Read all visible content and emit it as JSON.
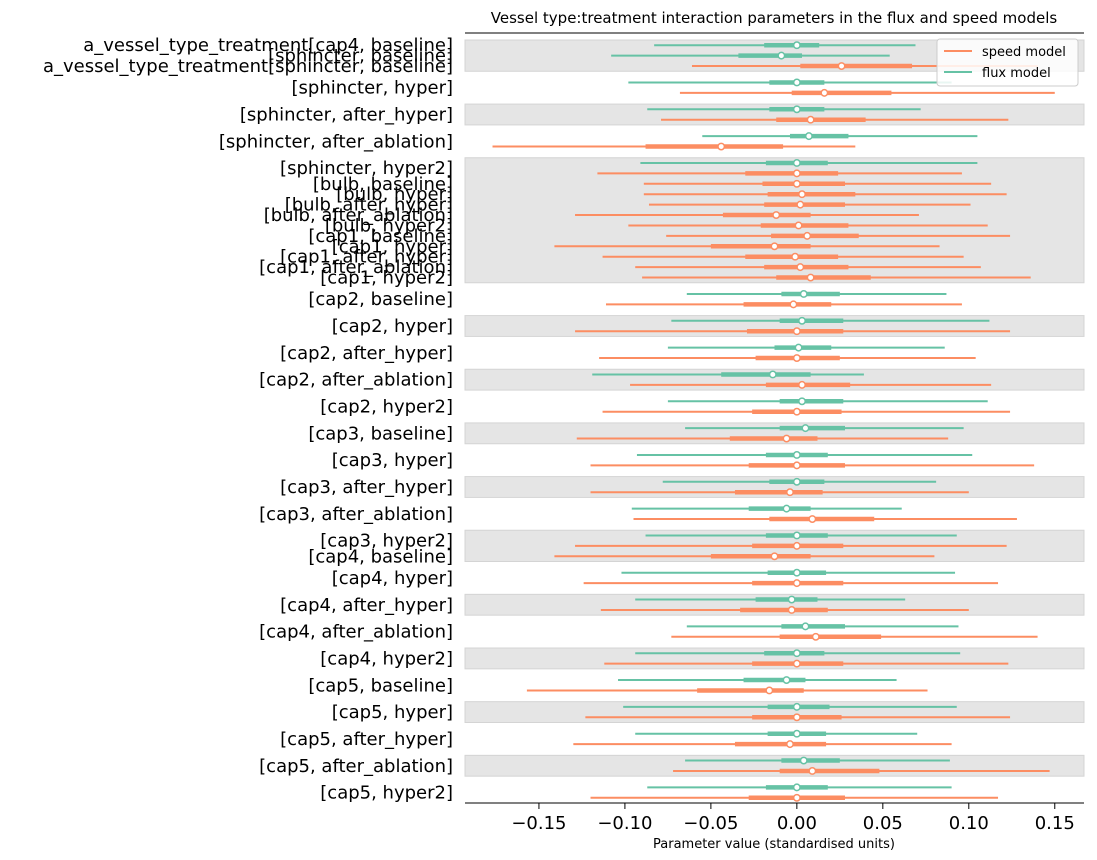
{
  "chart_data": {
    "type": "forest",
    "title": "Vessel type:treatment interaction parameters in the flux and speed models",
    "xlabel": "Parameter value (standardised units)",
    "ylabel": "",
    "xlim": [
      -0.193,
      0.167
    ],
    "xticks": [
      -0.15,
      -0.1,
      -0.05,
      0.0,
      0.05,
      0.1,
      0.15
    ],
    "xtick_labels": [
      "−0.15",
      "−0.10",
      "−0.05",
      "0.00",
      "0.05",
      "0.10",
      "0.15"
    ],
    "legend": {
      "placement": "top-right",
      "entries": [
        {
          "label": "speed model",
          "color": "#fc8d62"
        },
        {
          "label": "flux model",
          "color": "#66c2a5"
        }
      ]
    },
    "colors": {
      "speed": "#fc8d62",
      "flux": "#66c2a5",
      "band": "#e5e5e5"
    },
    "note_units": "each estimate: [hdi_low, iqr_low, median, iqr_high, hdi_high]",
    "groups": [
      {
        "shaded": true,
        "rows": [
          {
            "label": "a_vessel_type_treatment[cap4, baseline]",
            "flux": [
              -0.083,
              -0.019,
              0.0,
              0.013,
              0.069
            ]
          },
          {
            "label": "[sphincter, baseline]",
            "flux": [
              -0.108,
              -0.034,
              -0.009,
              0.003,
              0.054
            ]
          },
          {
            "label": "a_vessel_type_treatment[sphincter, baseline]",
            "speed": [
              -0.061,
              0.002,
              0.026,
              0.067,
              0.14
            ]
          }
        ]
      },
      {
        "shaded": false,
        "rows": [
          {
            "label": "[sphincter, hyper]",
            "flux": [
              -0.098,
              -0.016,
              0.0,
              0.016,
              0.09
            ],
            "speed": [
              -0.068,
              -0.003,
              0.016,
              0.055,
              0.15
            ]
          }
        ]
      },
      {
        "shaded": true,
        "rows": [
          {
            "label": "[sphincter, after_hyper]",
            "flux": [
              -0.087,
              -0.016,
              0.0,
              0.016,
              0.072
            ],
            "speed": [
              -0.079,
              -0.012,
              0.008,
              0.04,
              0.123
            ]
          }
        ]
      },
      {
        "shaded": false,
        "rows": [
          {
            "label": "[sphincter, after_ablation]",
            "flux": [
              -0.055,
              -0.004,
              0.007,
              0.03,
              0.105
            ],
            "speed": [
              -0.177,
              -0.088,
              -0.044,
              -0.008,
              0.034
            ]
          }
        ]
      },
      {
        "shaded": true,
        "rows": [
          {
            "label": "[sphincter, hyper2]",
            "flux": [
              -0.091,
              -0.018,
              0.0,
              0.018,
              0.105
            ],
            "speed": [
              -0.116,
              -0.03,
              0.0,
              0.024,
              0.096
            ]
          },
          {
            "label": "[bulb, baseline]",
            "speed": [
              -0.089,
              -0.02,
              0.0,
              0.028,
              0.113
            ]
          },
          {
            "label": "[bulb, hyper]",
            "speed": [
              -0.089,
              -0.017,
              0.003,
              0.034,
              0.122
            ]
          },
          {
            "label": "[bulb, after_hyper]",
            "speed": [
              -0.086,
              -0.019,
              0.002,
              0.028,
              0.101
            ]
          },
          {
            "label": "[bulb, after_ablation]",
            "speed": [
              -0.129,
              -0.043,
              -0.012,
              0.008,
              0.071
            ]
          },
          {
            "label": "[bulb, hyper2]",
            "speed": [
              -0.098,
              -0.021,
              0.001,
              0.03,
              0.111
            ]
          },
          {
            "label": "[cap1, baseline]",
            "speed": [
              -0.076,
              -0.015,
              0.006,
              0.036,
              0.124
            ]
          },
          {
            "label": "[cap1, hyper]",
            "speed": [
              -0.141,
              -0.05,
              -0.013,
              0.008,
              0.083
            ]
          },
          {
            "label": "[cap1, after_hyper]",
            "speed": [
              -0.113,
              -0.03,
              -0.001,
              0.024,
              0.097
            ]
          },
          {
            "label": "[cap1, after_ablation]",
            "speed": [
              -0.094,
              -0.019,
              0.002,
              0.03,
              0.107
            ]
          },
          {
            "label": "[cap1, hyper2]",
            "speed": [
              -0.09,
              -0.012,
              0.008,
              0.043,
              0.136
            ]
          }
        ]
      },
      {
        "shaded": false,
        "rows": [
          {
            "label": "[cap2, baseline]",
            "flux": [
              -0.064,
              -0.009,
              0.004,
              0.025,
              0.087
            ],
            "speed": [
              -0.111,
              -0.031,
              -0.002,
              0.02,
              0.096
            ]
          }
        ]
      },
      {
        "shaded": true,
        "rows": [
          {
            "label": "[cap2, hyper]",
            "flux": [
              -0.073,
              -0.01,
              0.003,
              0.027,
              0.112
            ],
            "speed": [
              -0.129,
              -0.029,
              0.0,
              0.027,
              0.124
            ]
          }
        ]
      },
      {
        "shaded": false,
        "rows": [
          {
            "label": "[cap2, after_hyper]",
            "flux": [
              -0.075,
              -0.013,
              0.001,
              0.02,
              0.086
            ],
            "speed": [
              -0.115,
              -0.024,
              0.0,
              0.025,
              0.104
            ]
          }
        ]
      },
      {
        "shaded": true,
        "rows": [
          {
            "label": "[cap2, after_ablation]",
            "flux": [
              -0.119,
              -0.044,
              -0.014,
              0.008,
              0.039
            ],
            "speed": [
              -0.097,
              -0.018,
              0.003,
              0.031,
              0.113
            ]
          }
        ]
      },
      {
        "shaded": false,
        "rows": [
          {
            "label": "[cap2, hyper2]",
            "flux": [
              -0.075,
              -0.01,
              0.003,
              0.027,
              0.111
            ],
            "speed": [
              -0.113,
              -0.026,
              0.0,
              0.026,
              0.124
            ]
          }
        ]
      },
      {
        "shaded": true,
        "rows": [
          {
            "label": "[cap3, baseline]",
            "flux": [
              -0.065,
              -0.01,
              0.005,
              0.028,
              0.097
            ],
            "speed": [
              -0.128,
              -0.039,
              -0.006,
              0.012,
              0.088
            ]
          }
        ]
      },
      {
        "shaded": false,
        "rows": [
          {
            "label": "[cap3, hyper]",
            "flux": [
              -0.093,
              -0.018,
              0.0,
              0.018,
              0.102
            ],
            "speed": [
              -0.12,
              -0.028,
              0.0,
              0.028,
              0.138
            ]
          }
        ]
      },
      {
        "shaded": true,
        "rows": [
          {
            "label": "[cap3, after_hyper]",
            "flux": [
              -0.078,
              -0.016,
              0.0,
              0.016,
              0.081
            ],
            "speed": [
              -0.12,
              -0.036,
              -0.004,
              0.015,
              0.1
            ]
          }
        ]
      },
      {
        "shaded": false,
        "rows": [
          {
            "label": "[cap3, after_ablation]",
            "flux": [
              -0.096,
              -0.028,
              -0.006,
              0.008,
              0.061
            ],
            "speed": [
              -0.095,
              -0.016,
              0.009,
              0.045,
              0.128
            ]
          }
        ]
      },
      {
        "shaded": true,
        "rows": [
          {
            "label": "[cap3, hyper2]",
            "flux": [
              -0.088,
              -0.018,
              0.0,
              0.018,
              0.093
            ],
            "speed": [
              -0.129,
              -0.026,
              0.0,
              0.027,
              0.122
            ]
          },
          {
            "label": "[cap4, baseline]",
            "speed": [
              -0.141,
              -0.05,
              -0.013,
              0.008,
              0.08
            ]
          }
        ]
      },
      {
        "shaded": false,
        "rows": [
          {
            "label": "[cap4, hyper]",
            "flux": [
              -0.102,
              -0.017,
              0.0,
              0.017,
              0.092
            ],
            "speed": [
              -0.124,
              -0.026,
              0.0,
              0.027,
              0.117
            ]
          }
        ]
      },
      {
        "shaded": true,
        "rows": [
          {
            "label": "[cap4, after_hyper]",
            "flux": [
              -0.094,
              -0.024,
              -0.003,
              0.012,
              0.063
            ],
            "speed": [
              -0.114,
              -0.033,
              -0.003,
              0.018,
              0.1
            ]
          }
        ]
      },
      {
        "shaded": false,
        "rows": [
          {
            "label": "[cap4, after_ablation]",
            "flux": [
              -0.064,
              -0.009,
              0.005,
              0.028,
              0.094
            ],
            "speed": [
              -0.073,
              -0.01,
              0.011,
              0.049,
              0.14
            ]
          }
        ]
      },
      {
        "shaded": true,
        "rows": [
          {
            "label": "[cap4, hyper2]",
            "flux": [
              -0.094,
              -0.019,
              0.0,
              0.016,
              0.095
            ],
            "speed": [
              -0.112,
              -0.026,
              0.0,
              0.027,
              0.123
            ]
          }
        ]
      },
      {
        "shaded": false,
        "rows": [
          {
            "label": "[cap5, baseline]",
            "flux": [
              -0.104,
              -0.031,
              -0.006,
              0.005,
              0.058
            ],
            "speed": [
              -0.157,
              -0.058,
              -0.016,
              0.004,
              0.076
            ]
          }
        ]
      },
      {
        "shaded": true,
        "rows": [
          {
            "label": "[cap5, hyper]",
            "flux": [
              -0.101,
              -0.017,
              0.0,
              0.019,
              0.093
            ],
            "speed": [
              -0.123,
              -0.026,
              0.0,
              0.026,
              0.124
            ]
          }
        ]
      },
      {
        "shaded": false,
        "rows": [
          {
            "label": "[cap5, after_hyper]",
            "flux": [
              -0.094,
              -0.017,
              0.0,
              0.017,
              0.07
            ],
            "speed": [
              -0.13,
              -0.036,
              -0.004,
              0.017,
              0.09
            ]
          }
        ]
      },
      {
        "shaded": true,
        "rows": [
          {
            "label": "[cap5, after_ablation]",
            "flux": [
              -0.065,
              -0.009,
              0.004,
              0.025,
              0.089
            ],
            "speed": [
              -0.072,
              -0.01,
              0.009,
              0.048,
              0.147
            ]
          }
        ]
      },
      {
        "shaded": false,
        "rows": [
          {
            "label": "[cap5, hyper2]",
            "flux": [
              -0.087,
              -0.018,
              0.0,
              0.018,
              0.09
            ],
            "speed": [
              -0.12,
              -0.028,
              0.0,
              0.028,
              0.117
            ]
          }
        ]
      }
    ]
  }
}
